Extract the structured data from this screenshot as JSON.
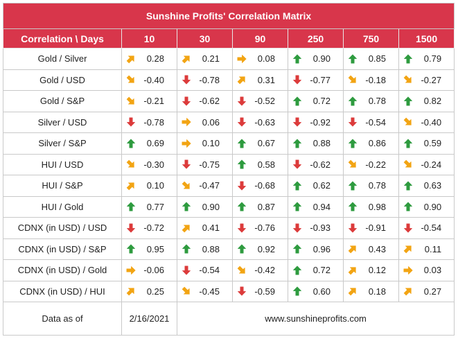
{
  "title": "Sunshine Profits' Correlation Matrix",
  "header": {
    "corner": "Correlation \\ Days",
    "days": [
      "10",
      "30",
      "90",
      "250",
      "750",
      "1500"
    ]
  },
  "colors": {
    "header_bg": "#d8364b",
    "up_green": "#2e9b3f",
    "down_red": "#dc3b3b",
    "sideways_orange": "#f2a413"
  },
  "rows": [
    {
      "pair": "Gold / Silver",
      "cells": [
        {
          "v": "0.28",
          "icon": "up-right-arrow-icon"
        },
        {
          "v": "0.21",
          "icon": "up-right-arrow-icon"
        },
        {
          "v": "0.08",
          "icon": "right-arrow-icon"
        },
        {
          "v": "0.90",
          "icon": "up-arrow-icon"
        },
        {
          "v": "0.85",
          "icon": "up-arrow-icon"
        },
        {
          "v": "0.79",
          "icon": "up-arrow-icon"
        }
      ]
    },
    {
      "pair": "Gold / USD",
      "cells": [
        {
          "v": "-0.40",
          "icon": "down-right-arrow-icon"
        },
        {
          "v": "-0.78",
          "icon": "down-arrow-icon"
        },
        {
          "v": "0.31",
          "icon": "up-right-arrow-icon"
        },
        {
          "v": "-0.77",
          "icon": "down-arrow-icon"
        },
        {
          "v": "-0.18",
          "icon": "down-right-arrow-icon"
        },
        {
          "v": "-0.27",
          "icon": "down-right-arrow-icon"
        }
      ]
    },
    {
      "pair": "Gold / S&P",
      "cells": [
        {
          "v": "-0.21",
          "icon": "down-right-arrow-icon"
        },
        {
          "v": "-0.62",
          "icon": "down-arrow-icon"
        },
        {
          "v": "-0.52",
          "icon": "down-arrow-icon"
        },
        {
          "v": "0.72",
          "icon": "up-arrow-icon"
        },
        {
          "v": "0.78",
          "icon": "up-arrow-icon"
        },
        {
          "v": "0.82",
          "icon": "up-arrow-icon"
        }
      ]
    },
    {
      "pair": "Silver / USD",
      "cells": [
        {
          "v": "-0.78",
          "icon": "down-arrow-icon"
        },
        {
          "v": "0.06",
          "icon": "right-arrow-icon"
        },
        {
          "v": "-0.63",
          "icon": "down-arrow-icon"
        },
        {
          "v": "-0.92",
          "icon": "down-arrow-icon"
        },
        {
          "v": "-0.54",
          "icon": "down-arrow-icon"
        },
        {
          "v": "-0.40",
          "icon": "down-right-arrow-icon"
        }
      ]
    },
    {
      "pair": "Silver / S&P",
      "cells": [
        {
          "v": "0.69",
          "icon": "up-arrow-icon"
        },
        {
          "v": "0.10",
          "icon": "right-arrow-icon"
        },
        {
          "v": "0.67",
          "icon": "up-arrow-icon"
        },
        {
          "v": "0.88",
          "icon": "up-arrow-icon"
        },
        {
          "v": "0.86",
          "icon": "up-arrow-icon"
        },
        {
          "v": "0.59",
          "icon": "up-arrow-icon"
        }
      ]
    },
    {
      "pair": "HUI / USD",
      "cells": [
        {
          "v": "-0.30",
          "icon": "down-right-arrow-icon"
        },
        {
          "v": "-0.75",
          "icon": "down-arrow-icon"
        },
        {
          "v": "0.58",
          "icon": "up-arrow-icon"
        },
        {
          "v": "-0.62",
          "icon": "down-arrow-icon"
        },
        {
          "v": "-0.22",
          "icon": "down-right-arrow-icon"
        },
        {
          "v": "-0.24",
          "icon": "down-right-arrow-icon"
        }
      ]
    },
    {
      "pair": "HUI / S&P",
      "cells": [
        {
          "v": "0.10",
          "icon": "up-right-arrow-icon"
        },
        {
          "v": "-0.47",
          "icon": "down-right-arrow-icon"
        },
        {
          "v": "-0.68",
          "icon": "down-arrow-icon"
        },
        {
          "v": "0.62",
          "icon": "up-arrow-icon"
        },
        {
          "v": "0.78",
          "icon": "up-arrow-icon"
        },
        {
          "v": "0.63",
          "icon": "up-arrow-icon"
        }
      ]
    },
    {
      "pair": "HUI / Gold",
      "cells": [
        {
          "v": "0.77",
          "icon": "up-arrow-icon"
        },
        {
          "v": "0.90",
          "icon": "up-arrow-icon"
        },
        {
          "v": "0.87",
          "icon": "up-arrow-icon"
        },
        {
          "v": "0.94",
          "icon": "up-arrow-icon"
        },
        {
          "v": "0.98",
          "icon": "up-arrow-icon"
        },
        {
          "v": "0.90",
          "icon": "up-arrow-icon"
        }
      ]
    },
    {
      "pair": "CDNX (in USD) / USD",
      "cells": [
        {
          "v": "-0.72",
          "icon": "down-arrow-icon"
        },
        {
          "v": "0.41",
          "icon": "up-right-arrow-icon"
        },
        {
          "v": "-0.76",
          "icon": "down-arrow-icon"
        },
        {
          "v": "-0.93",
          "icon": "down-arrow-icon"
        },
        {
          "v": "-0.91",
          "icon": "down-arrow-icon"
        },
        {
          "v": "-0.54",
          "icon": "down-arrow-icon"
        }
      ]
    },
    {
      "pair": "CDNX (in USD) / S&P",
      "cells": [
        {
          "v": "0.95",
          "icon": "up-arrow-icon"
        },
        {
          "v": "0.88",
          "icon": "up-arrow-icon"
        },
        {
          "v": "0.92",
          "icon": "up-arrow-icon"
        },
        {
          "v": "0.96",
          "icon": "up-arrow-icon"
        },
        {
          "v": "0.43",
          "icon": "up-right-arrow-icon"
        },
        {
          "v": "0.11",
          "icon": "up-right-arrow-icon"
        }
      ]
    },
    {
      "pair": "CDNX (in USD) / Gold",
      "cells": [
        {
          "v": "-0.06",
          "icon": "right-arrow-icon"
        },
        {
          "v": "-0.54",
          "icon": "down-arrow-icon"
        },
        {
          "v": "-0.42",
          "icon": "down-right-arrow-icon"
        },
        {
          "v": "0.72",
          "icon": "up-arrow-icon"
        },
        {
          "v": "0.12",
          "icon": "up-right-arrow-icon"
        },
        {
          "v": "0.03",
          "icon": "right-arrow-icon"
        }
      ]
    },
    {
      "pair": "CDNX (in USD) / HUI",
      "cells": [
        {
          "v": "0.25",
          "icon": "up-right-arrow-icon"
        },
        {
          "v": "-0.45",
          "icon": "down-right-arrow-icon"
        },
        {
          "v": "-0.59",
          "icon": "down-arrow-icon"
        },
        {
          "v": "0.60",
          "icon": "up-arrow-icon"
        },
        {
          "v": "0.18",
          "icon": "up-right-arrow-icon"
        },
        {
          "v": "0.27",
          "icon": "up-right-arrow-icon"
        }
      ]
    }
  ],
  "footer": {
    "label": "Data as of",
    "date": "2/16/2021",
    "website": "www.sunshineprofits.com"
  }
}
